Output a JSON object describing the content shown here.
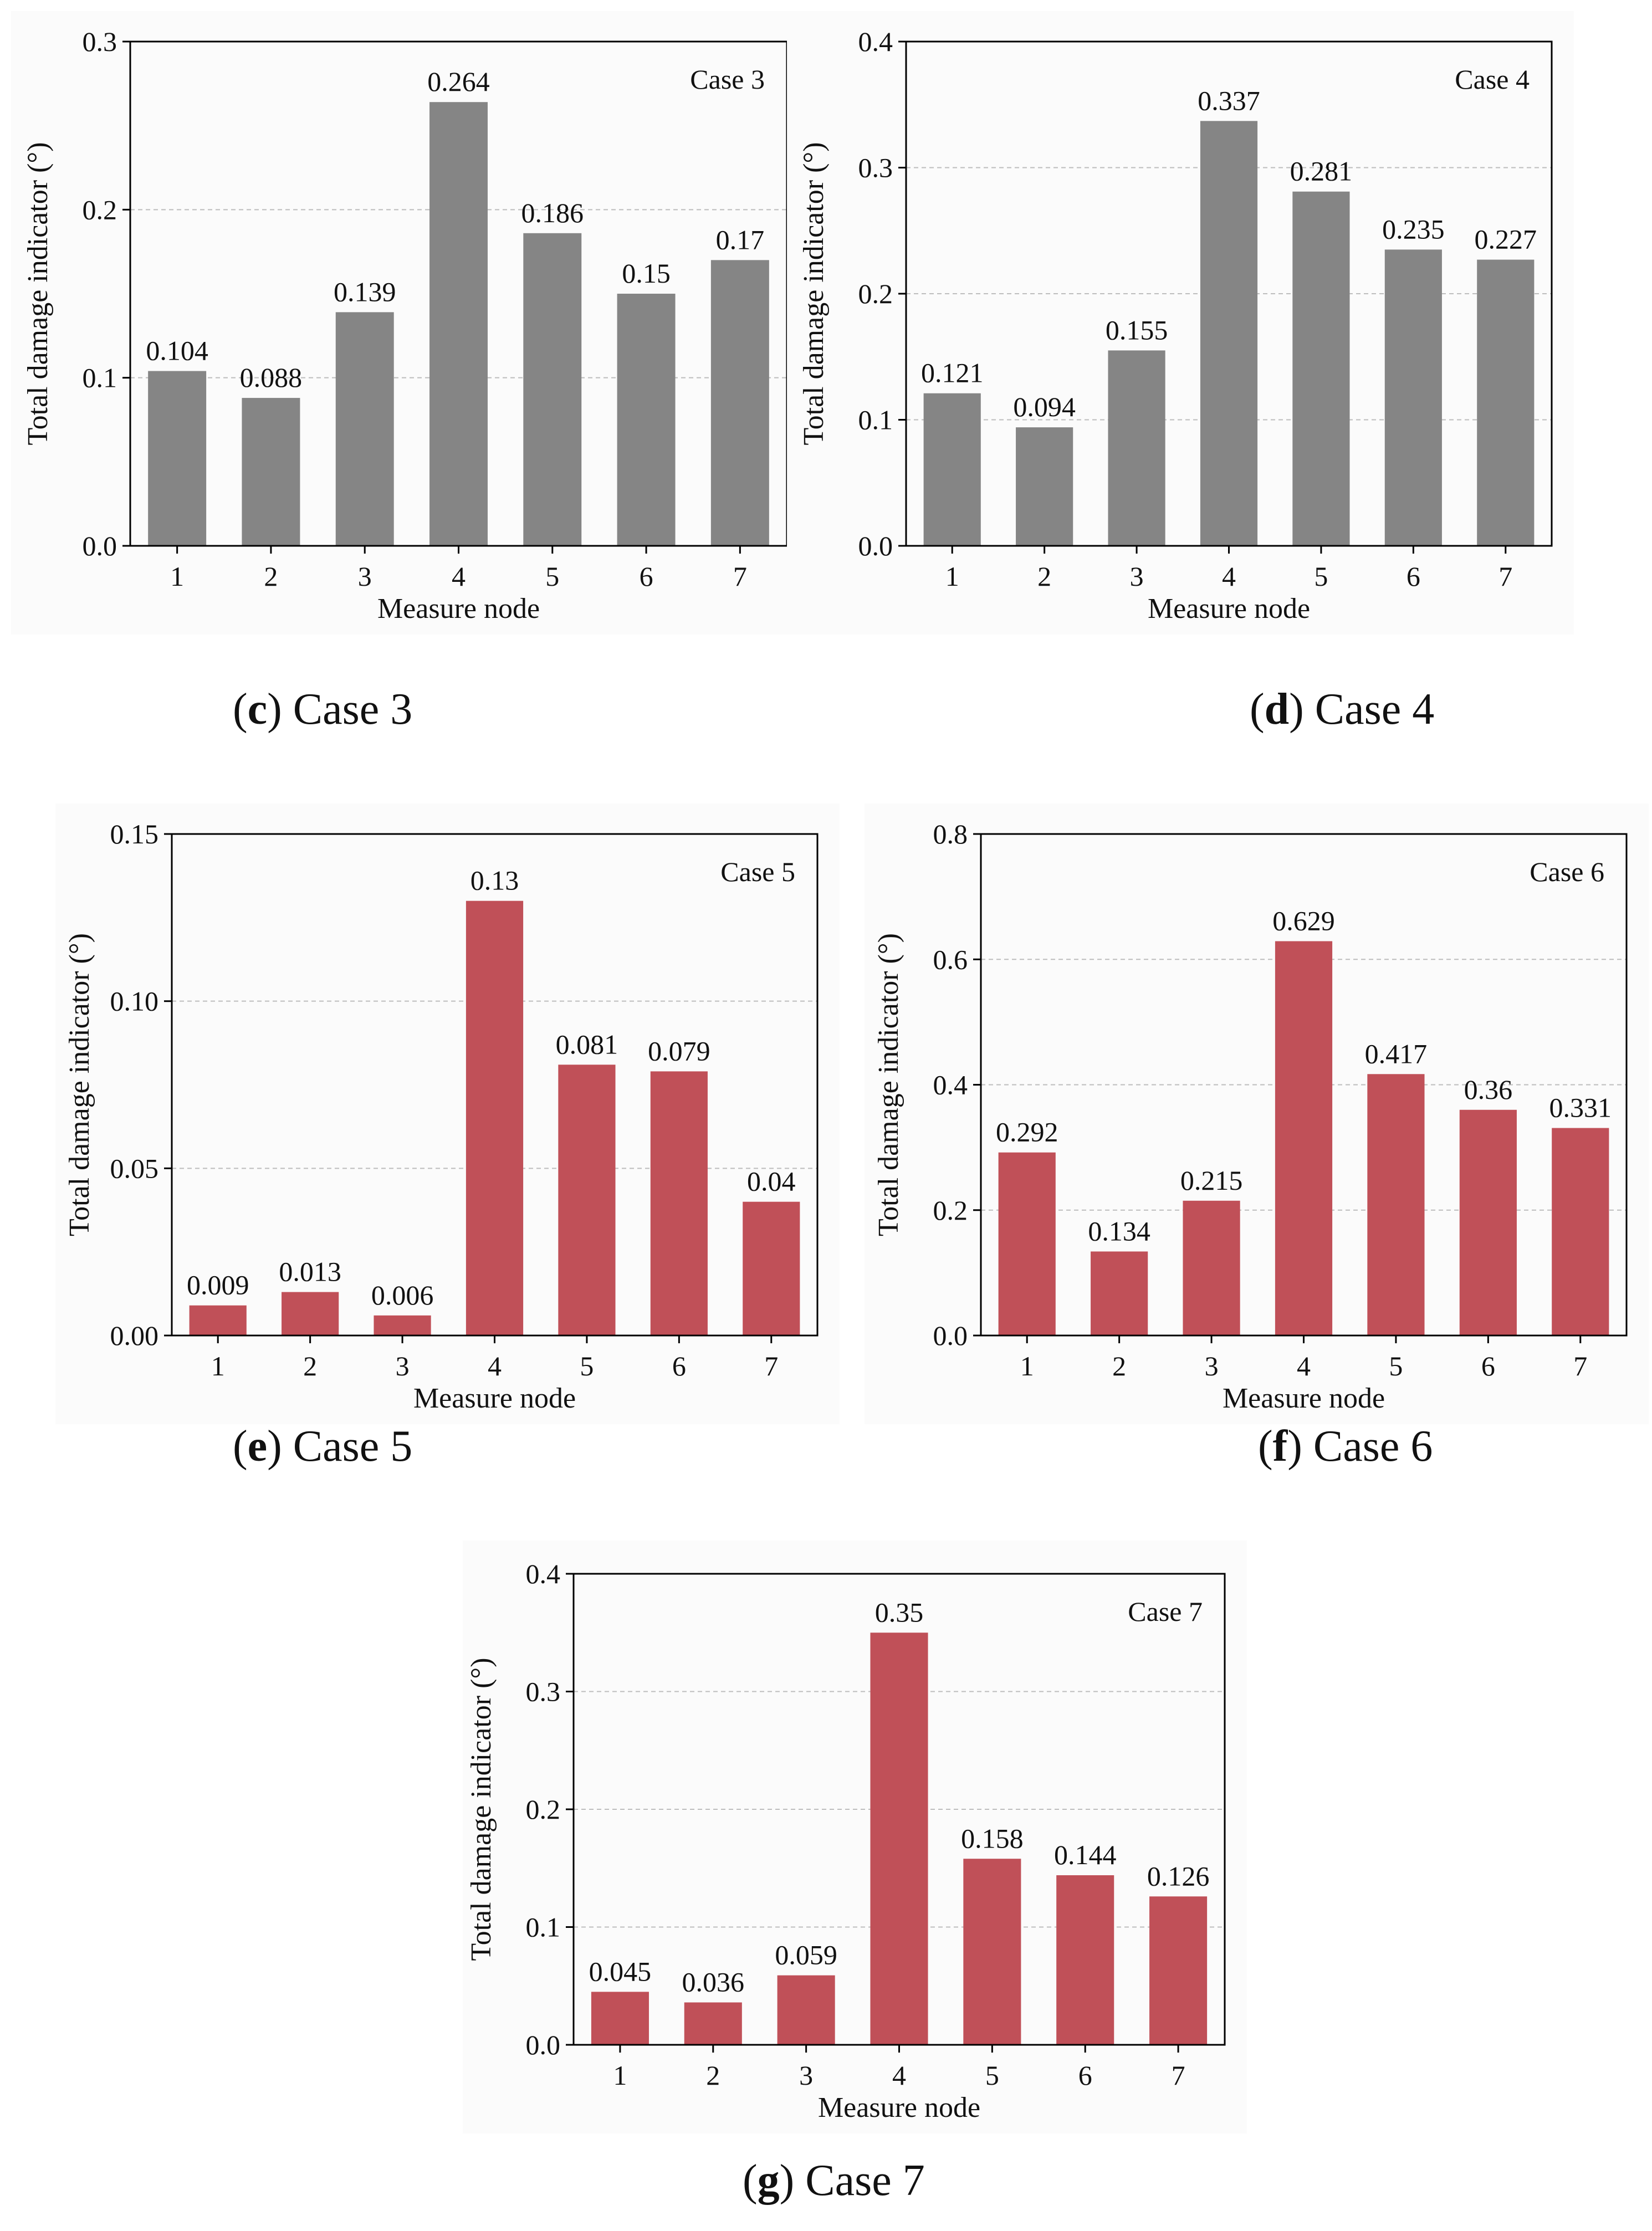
{
  "captions": [
    {
      "letter": "c",
      "text": "Case 3"
    },
    {
      "letter": "d",
      "text": "Case 4"
    },
    {
      "letter": "e",
      "text": "Case 5"
    },
    {
      "letter": "f",
      "text": "Case 6"
    },
    {
      "letter": "g",
      "text": "Case 7"
    }
  ],
  "colors": {
    "gray": "#858585",
    "red": "#c05058",
    "grid": "#bdbdbd"
  },
  "chart_data": [
    {
      "type": "bar",
      "annotation": "Case 3",
      "xlabel": "Measure node",
      "ylabel": "Total damage indicator (°)",
      "categories": [
        "1",
        "2",
        "3",
        "4",
        "5",
        "6",
        "7"
      ],
      "values": [
        0.104,
        0.088,
        0.139,
        0.264,
        0.186,
        0.15,
        0.17
      ],
      "value_labels": [
        "0.104",
        "0.088",
        "0.139",
        "0.264",
        "0.186",
        "0.15",
        "0.17"
      ],
      "ylim": [
        0,
        0.3
      ],
      "yticks": [
        "0.0",
        "0.1",
        "0.2",
        "0.3"
      ],
      "grid": "horizontal dashed",
      "color": "#858585"
    },
    {
      "type": "bar",
      "annotation": "Case 4",
      "xlabel": "Measure node",
      "ylabel": "Total damage indicator (°)",
      "categories": [
        "1",
        "2",
        "3",
        "4",
        "5",
        "6",
        "7"
      ],
      "values": [
        0.121,
        0.094,
        0.155,
        0.337,
        0.281,
        0.235,
        0.227
      ],
      "value_labels": [
        "0.121",
        "0.094",
        "0.155",
        "0.337",
        "0.281",
        "0.235",
        "0.227"
      ],
      "ylim": [
        0,
        0.4
      ],
      "yticks": [
        "0.0",
        "0.1",
        "0.2",
        "0.3",
        "0.4"
      ],
      "grid": "horizontal dashed",
      "color": "#858585"
    },
    {
      "type": "bar",
      "annotation": "Case 5",
      "xlabel": "Measure node",
      "ylabel": "Total damage indicator (°)",
      "categories": [
        "1",
        "2",
        "3",
        "4",
        "5",
        "6",
        "7"
      ],
      "values": [
        0.009,
        0.013,
        0.006,
        0.13,
        0.081,
        0.079,
        0.04
      ],
      "value_labels": [
        "0.009",
        "0.013",
        "0.006",
        "0.13",
        "0.081",
        "0.079",
        "0.04"
      ],
      "ylim": [
        0,
        0.15
      ],
      "yticks": [
        "0.00",
        "0.05",
        "0.10",
        "0.15"
      ],
      "grid": "horizontal dashed",
      "color": "#c05058"
    },
    {
      "type": "bar",
      "annotation": "Case 6",
      "xlabel": "Measure node",
      "ylabel": "Total damage indicator (°)",
      "categories": [
        "1",
        "2",
        "3",
        "4",
        "5",
        "6",
        "7"
      ],
      "values": [
        0.292,
        0.134,
        0.215,
        0.629,
        0.417,
        0.36,
        0.331
      ],
      "value_labels": [
        "0.292",
        "0.134",
        "0.215",
        "0.629",
        "0.417",
        "0.36",
        "0.331"
      ],
      "ylim": [
        0,
        0.8
      ],
      "yticks": [
        "0.0",
        "0.2",
        "0.4",
        "0.6",
        "0.8"
      ],
      "grid": "horizontal dashed",
      "color": "#c05058"
    },
    {
      "type": "bar",
      "annotation": "Case 7",
      "xlabel": "Measure node",
      "ylabel": "Total damage indicator (°)",
      "categories": [
        "1",
        "2",
        "3",
        "4",
        "5",
        "6",
        "7"
      ],
      "values": [
        0.045,
        0.036,
        0.059,
        0.35,
        0.158,
        0.144,
        0.126
      ],
      "value_labels": [
        "0.045",
        "0.036",
        "0.059",
        "0.35",
        "0.158",
        "0.144",
        "0.126"
      ],
      "ylim": [
        0,
        0.4
      ],
      "yticks": [
        "0.0",
        "0.1",
        "0.2",
        "0.3",
        "0.4"
      ],
      "grid": "horizontal dashed",
      "color": "#c05058"
    }
  ]
}
